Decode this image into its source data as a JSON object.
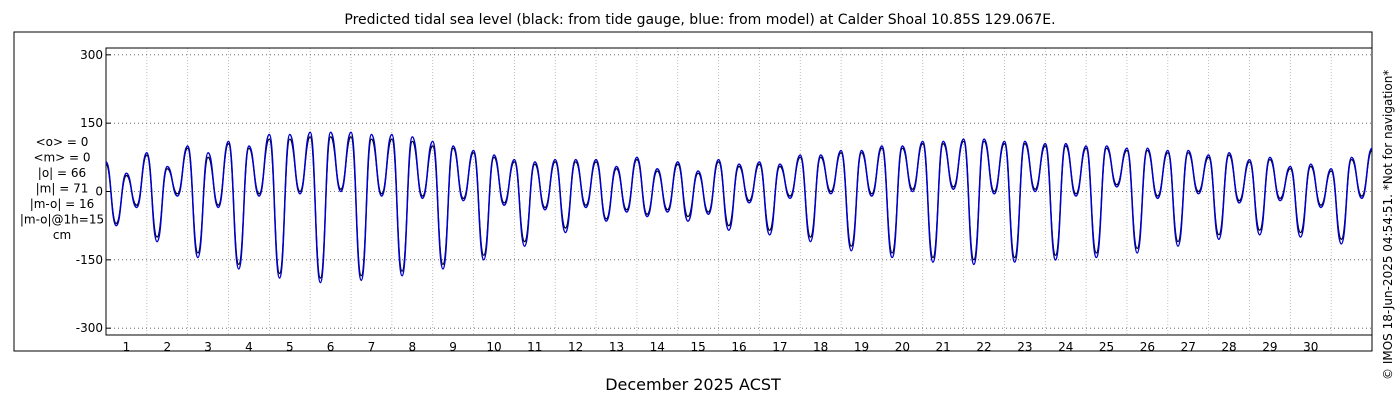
{
  "chart_data": {
    "type": "line",
    "title": "Predicted tidal sea level (black: from tide gauge, blue: from model) at Calder Shoal 10.85S 129.067E.",
    "xlabel": "December 2025 ACST",
    "ylabel": "",
    "ylim": [
      -315,
      315
    ],
    "yticks": [
      300,
      150,
      0,
      -150,
      -300
    ],
    "xlim": [
      0,
      31
    ],
    "xticks": [
      1,
      2,
      3,
      4,
      5,
      6,
      7,
      8,
      9,
      10,
      11,
      12,
      13,
      14,
      15,
      16,
      17,
      18,
      19,
      20,
      21,
      22,
      23,
      24,
      25,
      26,
      27,
      28,
      29,
      30
    ],
    "grid": true,
    "stats": [
      "<o> = 0",
      "<m> = 0",
      "|o| = 66",
      "|m| = 71",
      "|m-o| = 16",
      "|m-o|@1h=15",
      "cm"
    ],
    "side_note": "© IMOS 18-Jun-2025 04:54:51. *Not for navigation*",
    "x": [
      0.0,
      0.25,
      0.5,
      0.75,
      1.0,
      1.25,
      1.5,
      1.75,
      2.0,
      2.25,
      2.5,
      2.75,
      3.0,
      3.25,
      3.5,
      3.75,
      4.0,
      4.25,
      4.5,
      4.75,
      5.0,
      5.25,
      5.5,
      5.75,
      6.0,
      6.25,
      6.5,
      6.75,
      7.0,
      7.25,
      7.5,
      7.75,
      8.0,
      8.25,
      8.5,
      8.75,
      9.0,
      9.25,
      9.5,
      9.75,
      10.0,
      10.25,
      10.5,
      10.75,
      11.0,
      11.25,
      11.5,
      11.75,
      12.0,
      12.25,
      12.5,
      12.75,
      13.0,
      13.25,
      13.5,
      13.75,
      14.0,
      14.25,
      14.5,
      14.75,
      15.0,
      15.25,
      15.5,
      15.75,
      16.0,
      16.25,
      16.5,
      16.75,
      17.0,
      17.25,
      17.5,
      17.75,
      18.0,
      18.25,
      18.5,
      18.75,
      19.0,
      19.25,
      19.5,
      19.75,
      20.0,
      20.25,
      20.5,
      20.75,
      21.0,
      21.25,
      21.5,
      21.75,
      22.0,
      22.25,
      22.5,
      22.75,
      23.0,
      23.25,
      23.5,
      23.75,
      24.0,
      24.25,
      24.5,
      24.75,
      25.0,
      25.25,
      25.5,
      25.75,
      26.0,
      26.25,
      26.5,
      26.75,
      27.0,
      27.25,
      27.5,
      27.75,
      28.0,
      28.25,
      28.5,
      28.75,
      29.0,
      29.25,
      29.5,
      29.75,
      30.0,
      30.25,
      30.5,
      30.75,
      31.0
    ],
    "series": [
      {
        "color": "#000000",
        "values": [
          60,
          -70,
          35,
          -30,
          80,
          -100,
          50,
          -5,
          95,
          -135,
          75,
          -30,
          105,
          -160,
          95,
          -5,
          115,
          -180,
          115,
          0,
          120,
          -190,
          120,
          5,
          120,
          -185,
          115,
          -5,
          115,
          -175,
          110,
          -10,
          100,
          -160,
          95,
          -15,
          85,
          -140,
          75,
          -25,
          65,
          -110,
          60,
          -35,
          65,
          -80,
          65,
          -30,
          65,
          -60,
          50,
          -40,
          70,
          -50,
          45,
          -40,
          60,
          -55,
          40,
          -45,
          65,
          -75,
          55,
          -20,
          60,
          -85,
          55,
          -10,
          75,
          -100,
          75,
          0,
          85,
          -120,
          85,
          -5,
          95,
          -135,
          95,
          5,
          105,
          -145,
          105,
          10,
          110,
          -150,
          110,
          0,
          105,
          -145,
          105,
          5,
          100,
          -140,
          100,
          -5,
          95,
          -135,
          95,
          15,
          90,
          -125,
          90,
          -10,
          85,
          -110,
          85,
          0,
          75,
          -95,
          80,
          -20,
          65,
          -85,
          70,
          -15,
          50,
          -90,
          55,
          -30,
          45,
          -105,
          70,
          -10,
          90
        ]
      },
      {
        "color": "#0000cc",
        "values": [
          65,
          -75,
          40,
          -35,
          85,
          -110,
          55,
          -10,
          100,
          -145,
          85,
          -35,
          110,
          -170,
          100,
          -10,
          125,
          -190,
          125,
          -5,
          130,
          -200,
          130,
          0,
          130,
          -195,
          125,
          -10,
          125,
          -185,
          120,
          -15,
          110,
          -170,
          100,
          -20,
          90,
          -150,
          80,
          -30,
          70,
          -120,
          65,
          -40,
          70,
          -90,
          70,
          -35,
          70,
          -65,
          55,
          -45,
          75,
          -55,
          50,
          -45,
          65,
          -65,
          45,
          -50,
          70,
          -85,
          60,
          -25,
          65,
          -95,
          60,
          -15,
          80,
          -110,
          80,
          -5,
          90,
          -130,
          90,
          -10,
          100,
          -145,
          100,
          0,
          110,
          -155,
          110,
          5,
          115,
          -160,
          115,
          -5,
          110,
          -155,
          110,
          0,
          105,
          -150,
          105,
          -10,
          100,
          -145,
          100,
          10,
          95,
          -135,
          95,
          -15,
          90,
          -120,
          90,
          -5,
          80,
          -105,
          85,
          -25,
          70,
          -95,
          75,
          -20,
          55,
          -100,
          60,
          -35,
          50,
          -115,
          75,
          -15,
          95
        ]
      }
    ]
  }
}
